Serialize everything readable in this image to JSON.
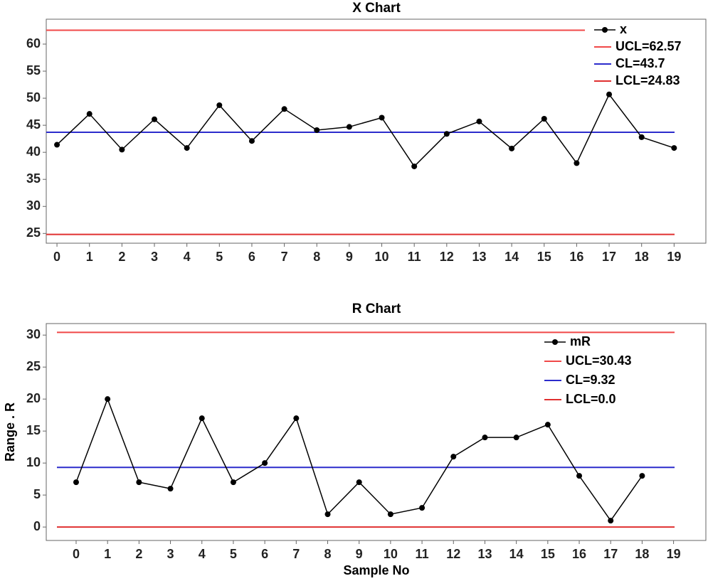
{
  "chart_data": [
    {
      "type": "line",
      "title": "X Chart",
      "x": [
        0,
        1,
        2,
        3,
        4,
        5,
        6,
        7,
        8,
        9,
        10,
        11,
        12,
        13,
        14,
        15,
        16,
        17,
        18,
        19
      ],
      "xlim": [
        -0.33,
        20
      ],
      "xticks": [
        0,
        1,
        2,
        3,
        4,
        5,
        6,
        7,
        8,
        9,
        10,
        11,
        12,
        13,
        14,
        15,
        16,
        17,
        18,
        19
      ],
      "ylim": [
        23.2,
        64.6
      ],
      "yticks": [
        25,
        30,
        35,
        40,
        45,
        50,
        55,
        60
      ],
      "series": [
        {
          "name": "x",
          "color": "#000000",
          "values": [
            41.4,
            47.1,
            40.5,
            46.1,
            40.8,
            48.7,
            42.1,
            48.0,
            44.1,
            44.7,
            46.4,
            37.4,
            43.4,
            45.7,
            40.7,
            46.2,
            38.0,
            50.7,
            42.8,
            40.8
          ]
        }
      ],
      "limits": [
        {
          "name": "UCL=62.57",
          "value": 62.57,
          "color": "#f04848"
        },
        {
          "name": "CL=43.7",
          "value": 43.7,
          "color": "#2c2ccc"
        },
        {
          "name": "LCL=24.83",
          "value": 24.83,
          "color": "#e03030"
        }
      ],
      "legend": "upper right"
    },
    {
      "type": "line",
      "title": "R Chart",
      "xlabel": "Sample No",
      "ylabel": "Range . R",
      "x": [
        0,
        1,
        2,
        3,
        4,
        5,
        6,
        7,
        8,
        9,
        10,
        11,
        12,
        13,
        14,
        15,
        16,
        17,
        18,
        19
      ],
      "xlim": [
        -0.95,
        20.05
      ],
      "xticks": [
        0,
        1,
        2,
        3,
        4,
        5,
        6,
        7,
        8,
        9,
        10,
        11,
        12,
        13,
        14,
        15,
        16,
        17,
        18,
        19
      ],
      "ylim": [
        -2.1,
        31.8
      ],
      "yticks": [
        0,
        5,
        10,
        15,
        20,
        25,
        30
      ],
      "series": [
        {
          "name": "mR",
          "color": "#000000",
          "values": [
            7,
            20,
            7,
            6,
            17,
            7,
            10,
            17,
            2,
            7,
            2,
            3,
            11,
            14,
            14,
            16,
            8,
            1,
            8,
            null
          ]
        }
      ],
      "limits": [
        {
          "name": "UCL=30.43",
          "value": 30.43,
          "color": "#f04848"
        },
        {
          "name": "CL=9.32",
          "value": 9.32,
          "color": "#2c2ccc"
        },
        {
          "name": "LCL=0.0",
          "value": 0.0,
          "color": "#e03030"
        }
      ],
      "legend": "upper right"
    }
  ]
}
